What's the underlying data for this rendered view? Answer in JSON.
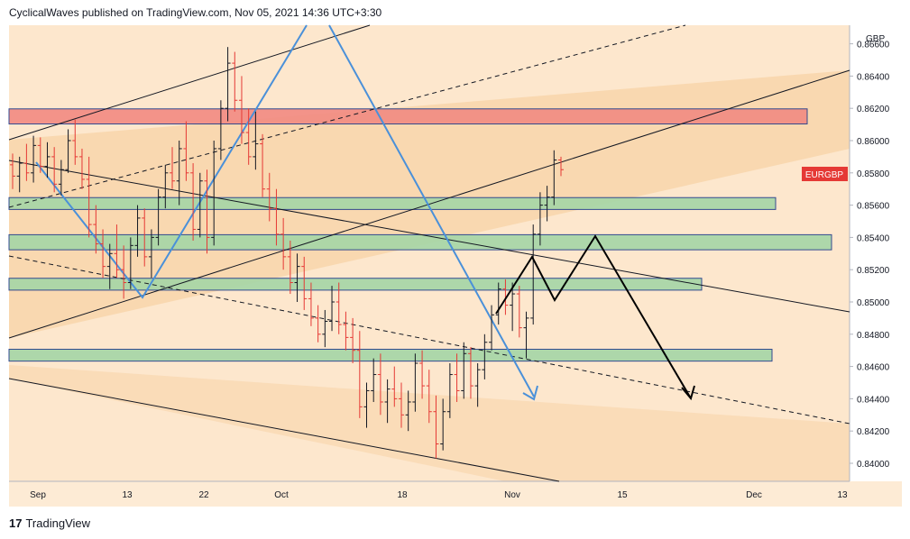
{
  "header": {
    "published": "CyclicalWaves published on TradingView.com, Nov 05, 2021 14:36 UTC+3:30"
  },
  "footer": {
    "logo_mark": "17",
    "brand": "TradingView"
  },
  "chart_data": {
    "type": "candlestick",
    "symbol": "EURGBP",
    "currency": "GBP",
    "last_price_label": "EURGBP",
    "y_ticks": [
      0.84,
      0.842,
      0.844,
      0.846,
      0.848,
      0.85,
      0.852,
      0.854,
      0.856,
      0.858,
      0.86,
      0.862,
      0.864,
      0.866
    ],
    "x_ticks": [
      "Sep",
      "13",
      "22",
      "Oct",
      "18",
      "Nov",
      "15",
      "Dec",
      "13"
    ],
    "ylim": [
      0.8392,
      0.867
    ],
    "colors": {
      "up": "#131722",
      "down": "#e53935",
      "background": "#fbe3c7",
      "channel": "#f7d6ad",
      "zone": "#a5d6a7",
      "resistance": "#f28b82",
      "projection": "#000000",
      "wave": "#4a90d9"
    },
    "zones": [
      {
        "kind": "resistance",
        "low": 0.8612,
        "high": 0.8618
      },
      {
        "kind": "support",
        "low": 0.8559,
        "high": 0.8563
      },
      {
        "kind": "support",
        "low": 0.8534,
        "high": 0.854
      },
      {
        "kind": "support",
        "low": 0.8509,
        "high": 0.8513
      },
      {
        "kind": "support",
        "low": 0.8465,
        "high": 0.8469
      }
    ],
    "candles_ohlc": [
      [
        0.8585,
        0.8592,
        0.857,
        0.8578
      ],
      [
        0.8578,
        0.859,
        0.8568,
        0.8586
      ],
      [
        0.8586,
        0.8598,
        0.8575,
        0.858
      ],
      [
        0.858,
        0.8603,
        0.8574,
        0.8597
      ],
      [
        0.8597,
        0.8602,
        0.858,
        0.8584
      ],
      [
        0.8584,
        0.8599,
        0.8577,
        0.859
      ],
      [
        0.859,
        0.8596,
        0.8568,
        0.8573
      ],
      [
        0.8573,
        0.8588,
        0.8566,
        0.8582
      ],
      [
        0.8582,
        0.8607,
        0.858,
        0.86
      ],
      [
        0.86,
        0.8613,
        0.8585,
        0.859
      ],
      [
        0.859,
        0.8595,
        0.857,
        0.8576
      ],
      [
        0.8576,
        0.859,
        0.854,
        0.8548
      ],
      [
        0.8548,
        0.856,
        0.853,
        0.8536
      ],
      [
        0.8536,
        0.8545,
        0.8515,
        0.8522
      ],
      [
        0.8522,
        0.8536,
        0.8508,
        0.853
      ],
      [
        0.853,
        0.8548,
        0.8515,
        0.852
      ],
      [
        0.852,
        0.8535,
        0.8502,
        0.8512
      ],
      [
        0.8512,
        0.854,
        0.8508,
        0.8535
      ],
      [
        0.8535,
        0.856,
        0.8528,
        0.8552
      ],
      [
        0.8552,
        0.8558,
        0.8522,
        0.8528
      ],
      [
        0.8528,
        0.8545,
        0.8515,
        0.854
      ],
      [
        0.854,
        0.857,
        0.8535,
        0.8565
      ],
      [
        0.8565,
        0.8585,
        0.8558,
        0.858
      ],
      [
        0.858,
        0.8596,
        0.857,
        0.8575
      ],
      [
        0.8575,
        0.86,
        0.856,
        0.8595
      ],
      [
        0.8595,
        0.8612,
        0.8575,
        0.858
      ],
      [
        0.858,
        0.8586,
        0.8538,
        0.8545
      ],
      [
        0.8545,
        0.858,
        0.854,
        0.8575
      ],
      [
        0.8575,
        0.8582,
        0.853,
        0.854
      ],
      [
        0.854,
        0.86,
        0.8535,
        0.8595
      ],
      [
        0.8595,
        0.8625,
        0.8588,
        0.862
      ],
      [
        0.862,
        0.8658,
        0.8612,
        0.8648
      ],
      [
        0.8648,
        0.8655,
        0.8618,
        0.8625
      ],
      [
        0.8625,
        0.864,
        0.8598,
        0.8605
      ],
      [
        0.8605,
        0.862,
        0.8585,
        0.859
      ],
      [
        0.859,
        0.8618,
        0.8582,
        0.8598
      ],
      [
        0.8598,
        0.8604,
        0.8565,
        0.857
      ],
      [
        0.857,
        0.858,
        0.855,
        0.8558
      ],
      [
        0.8558,
        0.857,
        0.8535,
        0.8542
      ],
      [
        0.8542,
        0.8552,
        0.852,
        0.8528
      ],
      [
        0.8528,
        0.8538,
        0.8505,
        0.8512
      ],
      [
        0.8512,
        0.853,
        0.85,
        0.8522
      ],
      [
        0.8522,
        0.8528,
        0.8495,
        0.8502
      ],
      [
        0.8502,
        0.8512,
        0.8485,
        0.849
      ],
      [
        0.849,
        0.8498,
        0.8475,
        0.848
      ],
      [
        0.848,
        0.8495,
        0.8472,
        0.8488
      ],
      [
        0.8488,
        0.851,
        0.8482,
        0.85
      ],
      [
        0.85,
        0.8512,
        0.848,
        0.8486
      ],
      [
        0.8486,
        0.8494,
        0.847,
        0.8478
      ],
      [
        0.8478,
        0.849,
        0.8462,
        0.847
      ],
      [
        0.847,
        0.8482,
        0.8428,
        0.8435
      ],
      [
        0.8435,
        0.845,
        0.8422,
        0.8445
      ],
      [
        0.8445,
        0.8465,
        0.8438,
        0.8455
      ],
      [
        0.8455,
        0.8468,
        0.843,
        0.8438
      ],
      [
        0.8438,
        0.8452,
        0.8425,
        0.8446
      ],
      [
        0.8446,
        0.846,
        0.8435,
        0.844
      ],
      [
        0.844,
        0.845,
        0.8422,
        0.843
      ],
      [
        0.843,
        0.8445,
        0.842,
        0.8438
      ],
      [
        0.8438,
        0.8468,
        0.8432,
        0.8462
      ],
      [
        0.8462,
        0.847,
        0.844,
        0.8448
      ],
      [
        0.8448,
        0.8458,
        0.8425,
        0.8432
      ],
      [
        0.8432,
        0.8442,
        0.8403,
        0.8412
      ],
      [
        0.8412,
        0.844,
        0.8408,
        0.8432
      ],
      [
        0.8432,
        0.8462,
        0.8428,
        0.8455
      ],
      [
        0.8455,
        0.8468,
        0.8438,
        0.8445
      ],
      [
        0.8445,
        0.8475,
        0.844,
        0.8468
      ],
      [
        0.8468,
        0.8472,
        0.844,
        0.8448
      ],
      [
        0.8448,
        0.8462,
        0.8435,
        0.8458
      ],
      [
        0.8458,
        0.848,
        0.8452,
        0.8475
      ],
      [
        0.8475,
        0.8498,
        0.847,
        0.8492
      ],
      [
        0.8492,
        0.8512,
        0.8486,
        0.8508
      ],
      [
        0.8508,
        0.8514,
        0.8492,
        0.8498
      ],
      [
        0.8498,
        0.8512,
        0.8482,
        0.8505
      ],
      [
        0.8505,
        0.851,
        0.8478,
        0.8484
      ],
      [
        0.8484,
        0.8494,
        0.8465,
        0.849
      ],
      [
        0.849,
        0.8548,
        0.8486,
        0.8542
      ],
      [
        0.8542,
        0.8568,
        0.8535,
        0.856
      ],
      [
        0.856,
        0.8572,
        0.855,
        0.8565
      ],
      [
        0.8565,
        0.8594,
        0.856,
        0.8588
      ],
      [
        0.8588,
        0.859,
        0.8578,
        0.8582
      ]
    ]
  }
}
